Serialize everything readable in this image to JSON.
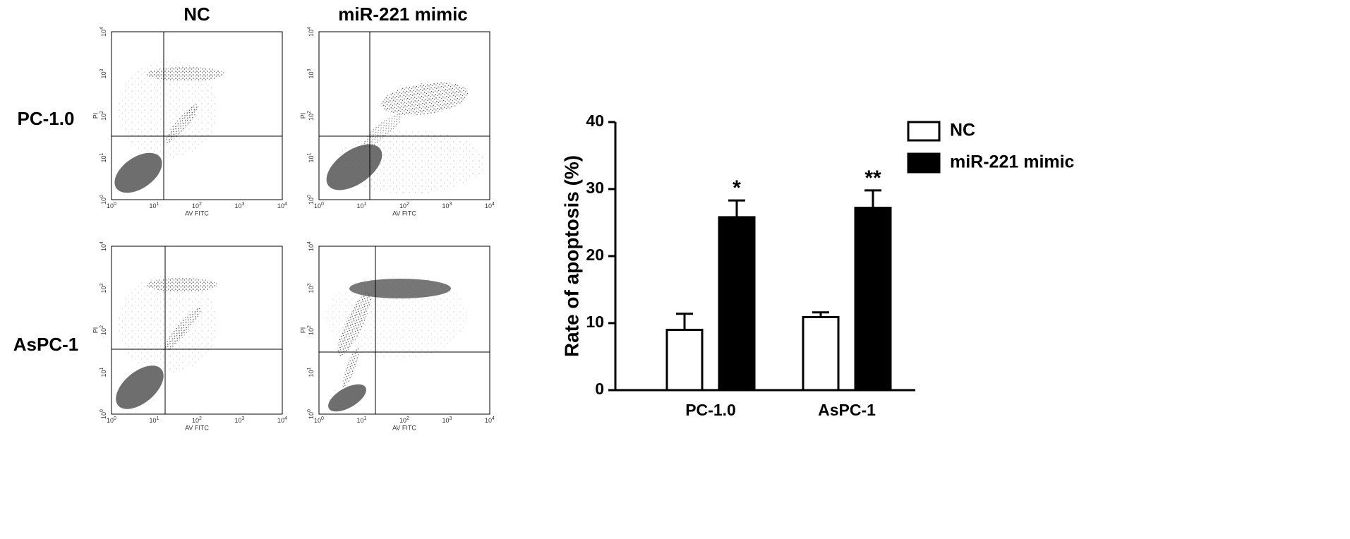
{
  "flow_panels": {
    "column_titles": [
      "NC",
      "miR-221 mimic"
    ],
    "row_labels": [
      "PC-1.0",
      "AsPC-1"
    ],
    "x_label": "AV FITC",
    "y_label": "PI",
    "tick_base": "10",
    "tick_exponents": [
      "0",
      "1",
      "2",
      "3",
      "4"
    ]
  },
  "chart_data": {
    "type": "bar",
    "y_label": "Rate of apoptosis (%)",
    "categories": [
      "PC-1.0",
      "AsPC-1"
    ],
    "series": [
      {
        "name": "NC",
        "color": "#ffffff",
        "values": [
          9,
          10.9
        ],
        "errors": [
          2.4,
          0.7
        ]
      },
      {
        "name": "miR-221 mimic",
        "color": "#000000",
        "values": [
          25.8,
          27.2
        ],
        "errors": [
          2.5,
          2.6
        ]
      }
    ],
    "annotations": [
      "*",
      "**"
    ],
    "ylim": [
      0,
      40
    ],
    "yticks": [
      0,
      10,
      20,
      30,
      40
    ],
    "legend": "top-right"
  }
}
